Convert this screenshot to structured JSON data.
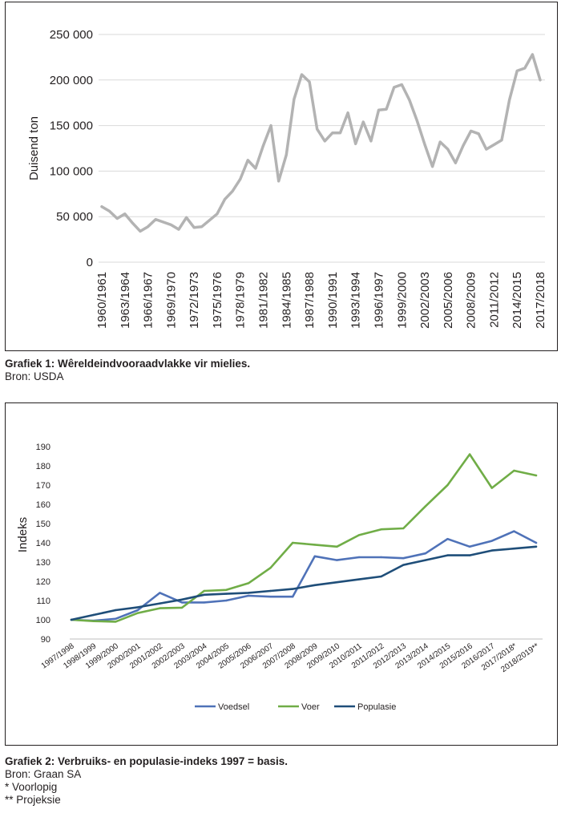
{
  "chart_data": [
    {
      "type": "line",
      "title": "",
      "xlabel": "",
      "ylabel": "Duisend ton",
      "ylim": [
        0,
        250000
      ],
      "yticks": [
        0,
        50000,
        100000,
        150000,
        200000,
        250000
      ],
      "ytick_labels": [
        "0",
        "50 000",
        "100 000",
        "150 000",
        "200 000",
        "250 000"
      ],
      "grid": "horizontal",
      "color": "#b3b3b3",
      "xtick_labels": [
        "1960/1961",
        "1963/1964",
        "1966/1967",
        "1969/1970",
        "1972/1973",
        "1975/1976",
        "1978/1979",
        "1981/1982",
        "1984/1985",
        "1987/1988",
        "1990/1991",
        "1993/1994",
        "1996/1997",
        "1999/2000",
        "2002/2003",
        "2005/2006",
        "2008/2009",
        "2011/2012",
        "2014/2015",
        "2017/2018"
      ],
      "x": [
        "1960/1961",
        "1961/1962",
        "1962/1963",
        "1963/1964",
        "1964/1965",
        "1965/1966",
        "1966/1967",
        "1967/1968",
        "1968/1969",
        "1969/1970",
        "1970/1971",
        "1971/1972",
        "1972/1973",
        "1973/1974",
        "1974/1975",
        "1975/1976",
        "1976/1977",
        "1977/1978",
        "1978/1979",
        "1979/1980",
        "1980/1981",
        "1981/1982",
        "1982/1983",
        "1983/1984",
        "1984/1985",
        "1985/1986",
        "1986/1987",
        "1987/1988",
        "1988/1989",
        "1989/1990",
        "1990/1991",
        "1991/1992",
        "1992/1993",
        "1993/1994",
        "1994/1995",
        "1995/1996",
        "1996/1997",
        "1997/1998",
        "1998/1999",
        "1999/2000",
        "2000/2001",
        "2001/2002",
        "2002/2003",
        "2003/2004",
        "2004/2005",
        "2005/2006",
        "2006/2007",
        "2007/2008",
        "2008/2009",
        "2009/2010",
        "2010/2011",
        "2011/2012",
        "2012/2013",
        "2013/2014",
        "2014/2015",
        "2015/2016",
        "2016/2017",
        "2017/2018"
      ],
      "values": [
        61000,
        56000,
        48000,
        53000,
        43000,
        34000,
        39000,
        47000,
        44000,
        41000,
        36000,
        49000,
        38000,
        39000,
        46000,
        53000,
        69000,
        78000,
        91000,
        112000,
        103000,
        128000,
        150000,
        89000,
        118000,
        179000,
        206000,
        198000,
        146000,
        133000,
        142000,
        142000,
        164000,
        130000,
        154000,
        133000,
        167000,
        168000,
        192000,
        195000,
        178000,
        155000,
        129000,
        105000,
        132000,
        124000,
        109000,
        128000,
        144000,
        141000,
        124000,
        129000,
        134000,
        178000,
        210000,
        213000,
        228000,
        200000
      ]
    },
    {
      "type": "line",
      "title": "",
      "xlabel": "",
      "ylabel": "Indeks",
      "ylim": [
        90,
        190
      ],
      "yticks": [
        90,
        100,
        110,
        120,
        130,
        140,
        150,
        160,
        170,
        180,
        190
      ],
      "grid": "none",
      "legend": "bottom",
      "categories": [
        "1997/1998",
        "1998/1999",
        "1999/2000",
        "2000/2001",
        "2001/2002",
        "2002/2003",
        "2003/2004",
        "2004/2005",
        "2005/2006",
        "2006/2007",
        "2007/2008",
        "2008/2009",
        "2009/2010",
        "2010/2011",
        "2011/2012",
        "2012/2013",
        "2013/2014",
        "2014/2015",
        "2015/2016",
        "2016/2017",
        "2017/2018*",
        "2018/2019**"
      ],
      "series": [
        {
          "name": "Voedsel",
          "color": "#4f72b8",
          "values": [
            100,
            99.5,
            100.5,
            105,
            114,
            109,
            109,
            110,
            112.5,
            112,
            112,
            133,
            131,
            132.5,
            132.5,
            132,
            134.5,
            142,
            138,
            141,
            146,
            140
          ]
        },
        {
          "name": "Voer",
          "color": "#70ad47",
          "values": [
            100,
            99.3,
            99,
            103.5,
            106,
            106.3,
            115,
            115.5,
            119,
            127,
            140,
            139,
            138,
            144,
            147,
            147.5,
            159,
            170,
            186,
            168.5,
            177.5,
            175
          ]
        },
        {
          "name": "Populasie",
          "color": "#1f4e79",
          "values": [
            100,
            102.5,
            105,
            106.5,
            108.5,
            110.5,
            113,
            113.5,
            114,
            115,
            116,
            118,
            119.5,
            121,
            122.5,
            128.5,
            131,
            133.5,
            133.5,
            136,
            137,
            138
          ]
        }
      ]
    }
  ],
  "captions": [
    {
      "title": "Grafiek 1: Wêreldeindvooraadvlakke vir mielies.",
      "lines": [
        "Bron: USDA"
      ]
    },
    {
      "title": "Grafiek 2: Verbruiks- en populasie-indeks 1997 = basis.",
      "lines": [
        "Bron: Graan SA",
        "* Voorlopig",
        "** Projeksie"
      ]
    }
  ]
}
